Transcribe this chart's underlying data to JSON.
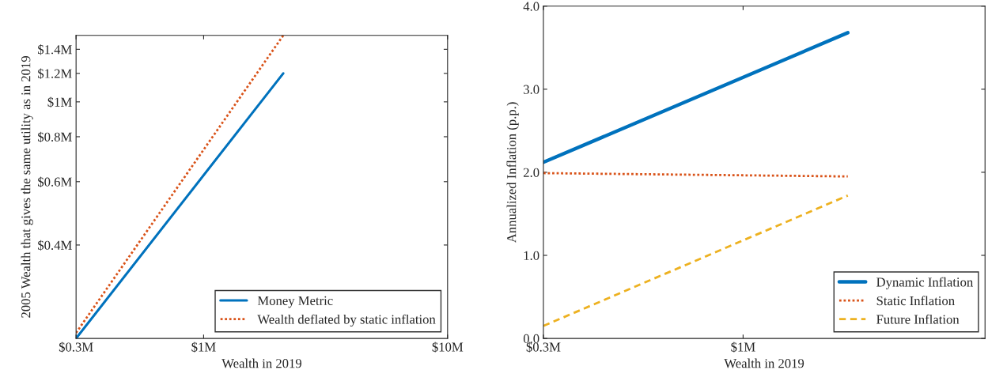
{
  "chart_data": [
    {
      "type": "line",
      "xlabel": "Wealth in 2019",
      "ylabel": "2005 Wealth that gives the same utility as in 2019",
      "log": "xy",
      "xlim": [
        0.3,
        10
      ],
      "xticks": [
        {
          "value": 0.3,
          "label": "$0.3M"
        },
        {
          "value": 1,
          "label": "$1M"
        },
        {
          "value": 10,
          "label": "$10M"
        }
      ],
      "ylim": [
        0.22,
        1.53
      ],
      "yticks": [
        {
          "value": 0.4,
          "label": "$0.4M"
        },
        {
          "value": 0.6,
          "label": "$0.6M"
        },
        {
          "value": 0.8,
          "label": "$0.8M"
        },
        {
          "value": 1,
          "label": "$1M"
        },
        {
          "value": 1.2,
          "label": "$1.2M"
        },
        {
          "value": 1.4,
          "label": "$1.4M"
        }
      ],
      "legend": "bottom right",
      "series": [
        {
          "name": "Money Metric",
          "color": "#0072bd",
          "line_style": "solid",
          "x": [
            0.3,
            2.12
          ],
          "values": [
            0.22,
            1.2
          ]
        },
        {
          "name": "Wealth deflated by static inflation",
          "color": "#d95319",
          "line_style": "dotted",
          "x": [
            0.3,
            2.12
          ],
          "values": [
            0.228,
            1.53
          ]
        }
      ]
    },
    {
      "type": "line",
      "xlabel": "Wealth in 2019",
      "ylabel": "Annualized Inflation (p.p.)",
      "log": "x",
      "xlim": [
        0.3,
        4.3
      ],
      "xticks": [
        {
          "value": 0.3,
          "label": "$0.3M"
        },
        {
          "value": 1,
          "label": "$1M"
        }
      ],
      "ylim": [
        0,
        4
      ],
      "yticks": [
        {
          "value": 0,
          "label": "0.0"
        },
        {
          "value": 1,
          "label": "1.0"
        },
        {
          "value": 2,
          "label": "2.0"
        },
        {
          "value": 3,
          "label": "3.0"
        },
        {
          "value": 4,
          "label": "4.0"
        }
      ],
      "legend": "bottom right",
      "series": [
        {
          "name": "Dynamic Inflation",
          "color": "#0072bd",
          "line_style": "solid",
          "x": [
            0.3,
            1.88
          ],
          "values": [
            2.12,
            3.68
          ]
        },
        {
          "name": "Static Inflation",
          "color": "#d95319",
          "line_style": "dotted",
          "x": [
            0.3,
            1.88
          ],
          "values": [
            1.99,
            1.95
          ]
        },
        {
          "name": "Future Inflation",
          "color": "#edb120",
          "line_style": "dashed",
          "x": [
            0.3,
            1.88
          ],
          "values": [
            0.15,
            1.72
          ]
        }
      ]
    }
  ]
}
